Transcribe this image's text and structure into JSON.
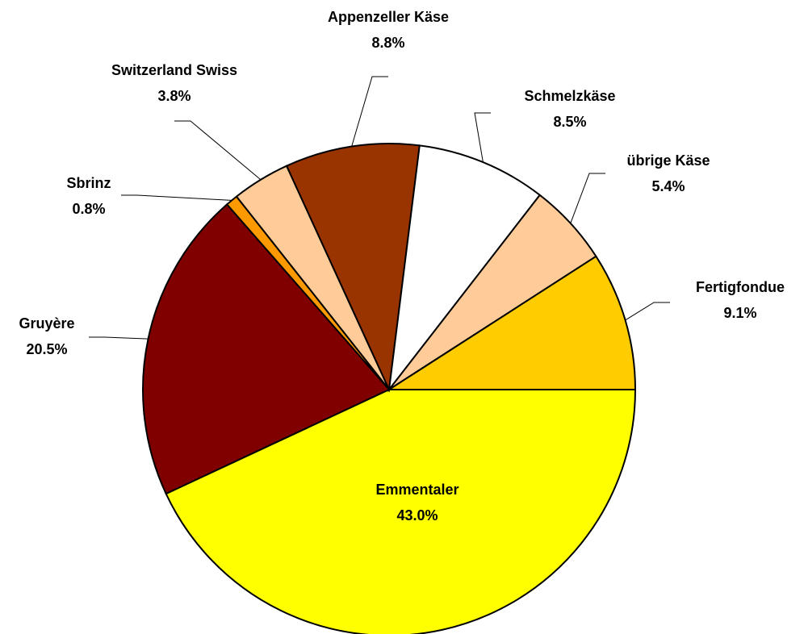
{
  "chart_data": {
    "type": "pie",
    "categories": [
      "Emmentaler",
      "Gruyère",
      "Sbrinz",
      "Switzerland Swiss",
      "Appenzeller Käse",
      "Schmelzkäse",
      "übrige Käse",
      "Fertigfondue"
    ],
    "values": [
      43.0,
      20.5,
      0.8,
      3.8,
      8.8,
      8.5,
      5.4,
      9.1
    ],
    "value_labels": [
      "43.0%",
      "20.5%",
      "0.8%",
      "3.8%",
      "8.8%",
      "8.5%",
      "5.4%",
      "9.1%"
    ],
    "colors": [
      "#ffff00",
      "#800000",
      "#ff9900",
      "#ffcc99",
      "#993300",
      "#ffffff",
      "#ffcc99",
      "#ffcc00"
    ]
  }
}
